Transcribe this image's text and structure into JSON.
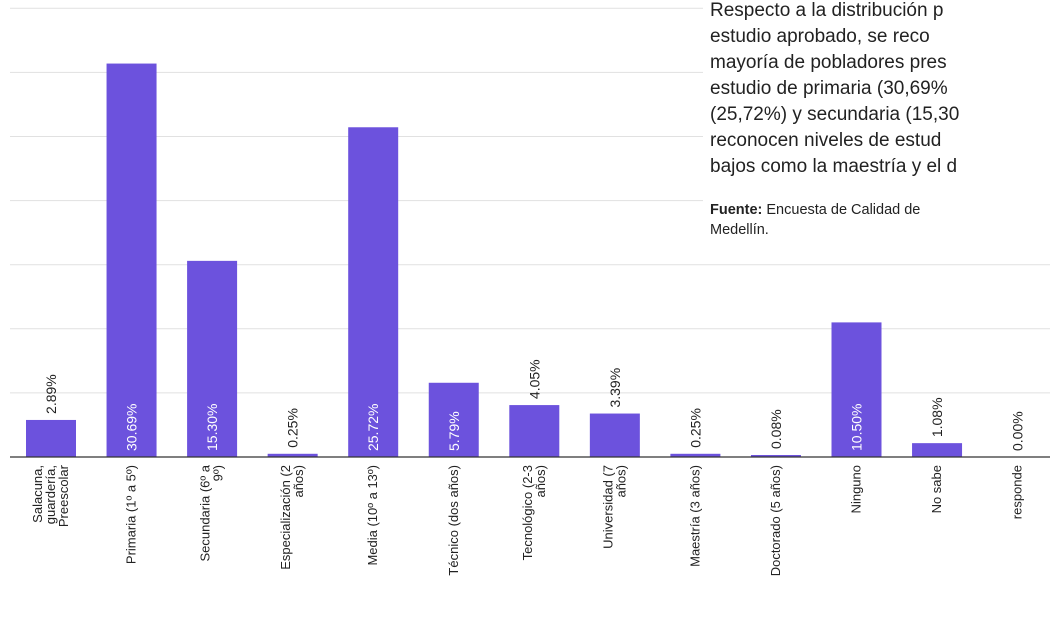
{
  "chart_data": {
    "type": "bar",
    "title": "",
    "xlabel": "",
    "ylabel": "",
    "grid": true,
    "legend": "none",
    "bar_color": "#6c52dd",
    "ylim": [
      0,
      35
    ],
    "categories": [
      [
        "Salacuna,",
        "guardería,",
        "Preescolar"
      ],
      [
        "Primaria (1º a 5º)"
      ],
      [
        "Secundaria (6º a",
        "9º)"
      ],
      [
        "Especialización (2",
        "años)"
      ],
      [
        "Media (10º a 13º)"
      ],
      [
        "Técnico (dos años)"
      ],
      [
        "Tecnológico (2-3",
        "años)"
      ],
      [
        "Universidad (7",
        "años)"
      ],
      [
        "Maestría (3 años)"
      ],
      [
        "Doctorado (5 años)"
      ],
      [
        "Ninguno"
      ],
      [
        "No sabe"
      ],
      [
        "responde"
      ]
    ],
    "values": [
      2.89,
      30.69,
      15.3,
      0.25,
      25.72,
      5.79,
      4.05,
      3.39,
      0.25,
      0.08,
      10.5,
      1.08,
      0.0
    ],
    "value_labels": [
      "2.89%",
      "30.69%",
      "15.30%",
      "0.25%",
      "25.72%",
      "5.79%",
      "4.05%",
      "3.39%",
      "0.25%",
      "0.08%",
      "10.50%",
      "1.08%",
      "0.00%"
    ]
  },
  "text_panel": {
    "paragraph_lines": [
      "Respecto a la distribución p",
      "estudio aprobado, se reco",
      "mayoría de pobladores pres",
      "estudio de primaria (30,69%",
      "(25,72%) y secundaria (15,30",
      "reconocen niveles de estud",
      "bajos como la maestría y el d"
    ],
    "source_label": "Fuente:",
    "source_lines": [
      "Encuesta de Calidad de",
      "Medellín."
    ]
  }
}
